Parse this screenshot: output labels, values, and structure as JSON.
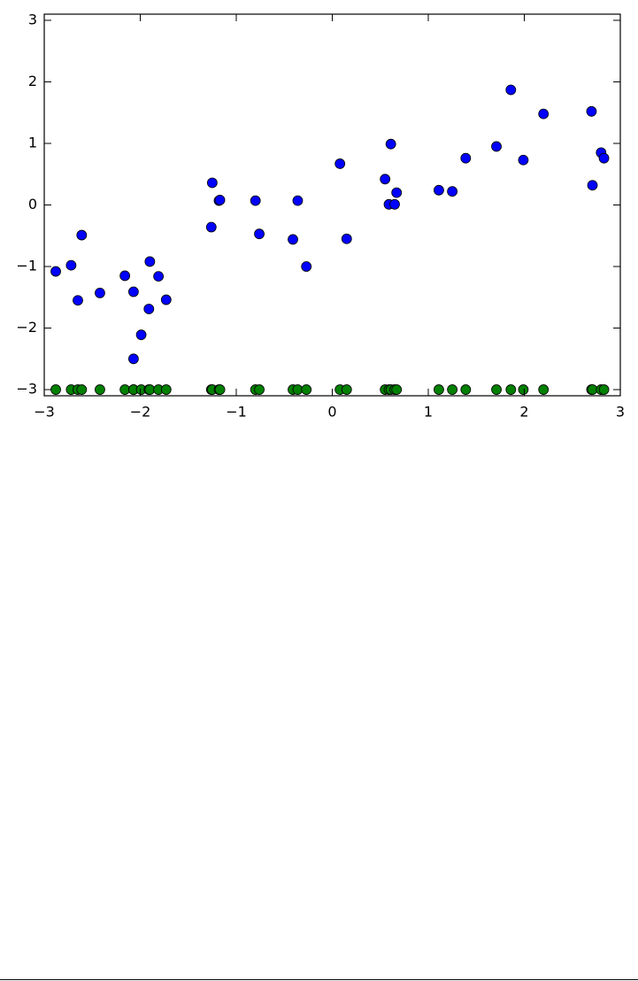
{
  "chart_data": {
    "type": "scatter",
    "x": [
      -2.88,
      -2.72,
      -2.65,
      -2.61,
      -2.42,
      -2.16,
      -2.07,
      -2.07,
      -1.99,
      -1.91,
      -1.9,
      -1.81,
      -1.73,
      -1.26,
      -1.25,
      -1.18,
      -1.17,
      -0.8,
      -0.76,
      -0.41,
      -0.36,
      -0.27,
      0.08,
      0.15,
      0.55,
      0.59,
      0.61,
      0.65,
      0.67,
      1.11,
      1.25,
      1.39,
      1.71,
      1.86,
      1.99,
      2.2,
      2.7,
      2.71,
      2.8,
      2.83
    ],
    "series": [
      {
        "color": "#0000ff",
        "values": [
          -1.08,
          -0.98,
          -1.55,
          -0.49,
          -1.43,
          -1.15,
          -1.41,
          -2.5,
          -2.11,
          -1.69,
          -0.92,
          -1.16,
          -1.54,
          -0.36,
          0.36,
          0.07,
          0.08,
          0.07,
          -0.47,
          -0.56,
          0.07,
          -1.0,
          0.67,
          -0.55,
          0.42,
          0.01,
          0.99,
          0.01,
          0.2,
          0.24,
          0.22,
          0.76,
          0.95,
          1.87,
          0.73,
          1.48,
          1.52,
          0.32,
          0.85,
          0.76
        ]
      },
      {
        "color": "#008000",
        "values": [
          -3,
          -3,
          -3,
          -3,
          -3,
          -3,
          -3,
          -3,
          -3,
          -3,
          -3,
          -3,
          -3,
          -3,
          -3,
          -3,
          -3,
          -3,
          -3,
          -3,
          -3,
          -3,
          -3,
          -3,
          -3,
          -3,
          -3,
          -3,
          -3,
          -3,
          -3,
          -3,
          -3,
          -3,
          -3,
          -3,
          -3,
          -3,
          -3,
          -3
        ]
      }
    ],
    "xlim": [
      -3,
      3
    ],
    "ylim": [
      -3.1,
      3.1
    ],
    "xticks": [
      {
        "value": -3,
        "label": "−3"
      },
      {
        "value": -2,
        "label": "−2"
      },
      {
        "value": -1,
        "label": "−1"
      },
      0,
      1,
      2,
      3
    ],
    "yticks": [
      {
        "value": -3,
        "label": "−3"
      },
      {
        "value": -2,
        "label": "−2"
      },
      {
        "value": -1,
        "label": "−1"
      },
      0,
      1,
      2,
      3
    ],
    "grid": false
  }
}
